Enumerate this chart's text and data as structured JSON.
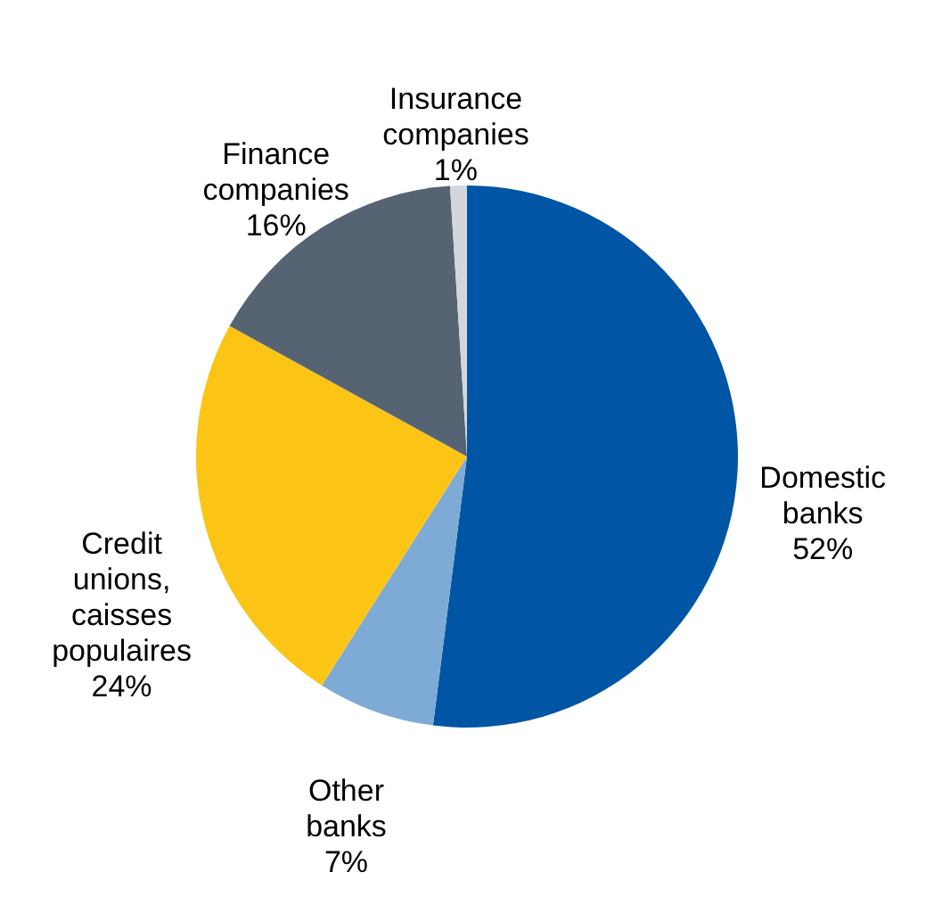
{
  "chart_data": {
    "type": "pie",
    "categories": [
      "Domestic banks",
      "Other banks",
      "Credit unions, caisses populaires",
      "Finance companies",
      "Insurance companies"
    ],
    "values": [
      52,
      7,
      24,
      16,
      1
    ],
    "colors": [
      "#0055a4",
      "#7eaad6",
      "#fcc516",
      "#556372",
      "#d3d6da"
    ],
    "value_labels": [
      "52%",
      "7%",
      "24%",
      "16%",
      "1%"
    ]
  }
}
